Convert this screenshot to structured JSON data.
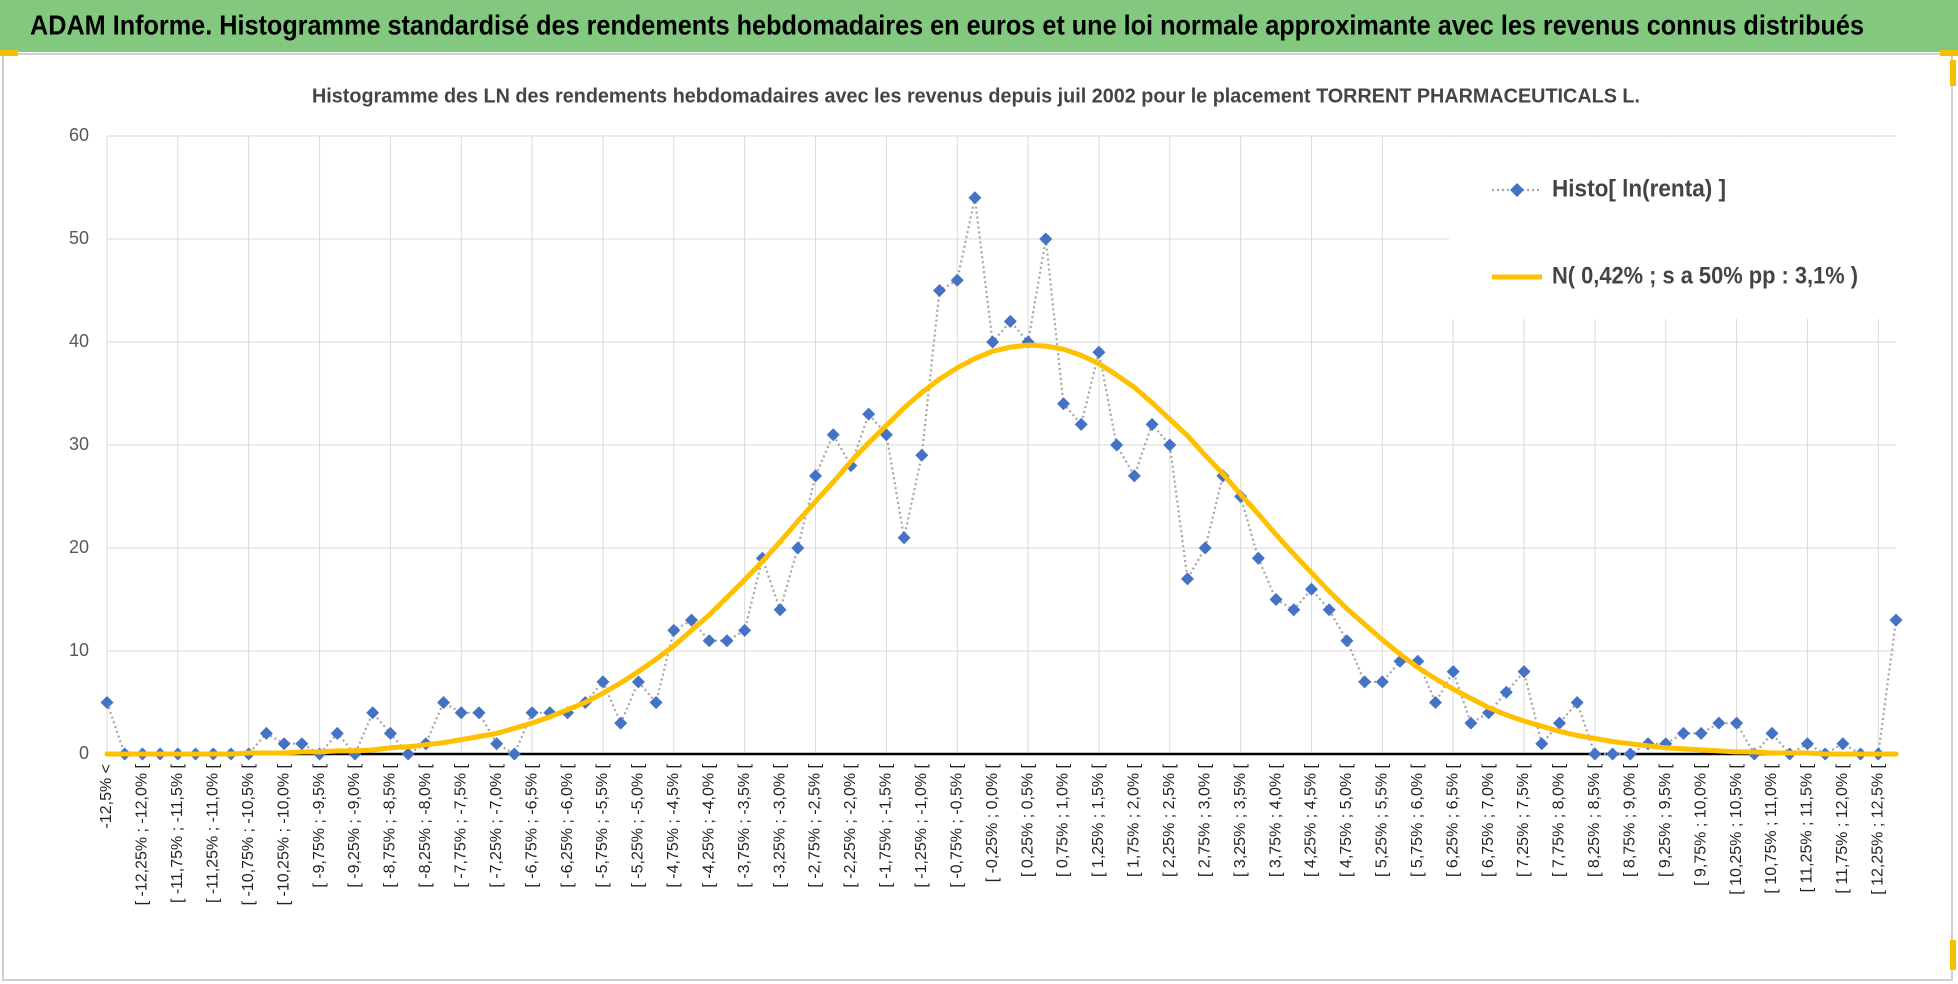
{
  "header": {
    "title": "ADAM Informe. Histogramme standardisé des rendements hebdomadaires en euros et une loi normale approximante avec les revenus connus distribués"
  },
  "chart_data": {
    "type": "line",
    "title": "Histogramme des LN des rendements hebdomadaires avec les revenus depuis juil 2002 pour le placement TORRENT PHARMACEUTICALS L.",
    "categories": [
      "-12,5% <",
      null,
      "[ -12,25% ; -12,0% [",
      null,
      "[ -11,75% ; -11,5% [",
      null,
      "[ -11,25% ; -11,0% [",
      null,
      "[ -10,75% ; -10,5% [",
      null,
      "[ -10,25% ; -10,0% [",
      null,
      "[ -9,75% ; -9,5% [",
      null,
      "[ -9,25% ; -9,0% [",
      null,
      "[ -8,75% ; -8,5% [",
      null,
      "[ -8,25% ; -8,0% [",
      null,
      "[ -7,75% ; -7,5% [",
      null,
      "[ -7,25% ; -7,0% [",
      null,
      "[ -6,75% ; -6,5% [",
      null,
      "[ -6,25% ; -6,0% [",
      null,
      "[ -5,75% ; -5,5% [",
      null,
      "[ -5,25% ; -5,0% [",
      null,
      "[ -4,75% ; -4,5% [",
      null,
      "[ -4,25% ; -4,0% [",
      null,
      "[ -3,75% ; -3,5% [",
      null,
      "[ -3,25% ; -3,0% [",
      null,
      "[ -2,75% ; -2,5% [",
      null,
      "[ -2,25% ; -2,0% [",
      null,
      "[ -1,75% ; -1,5% [",
      null,
      "[ -1,25% ; -1,0% [",
      null,
      "[ -0,75% ; -0,5% [",
      null,
      "[ -0,25% ; 0,0% [",
      null,
      "[ 0,25% ; 0,5% [",
      null,
      "[ 0,75% ; 1,0% [",
      null,
      "[ 1,25% ; 1,5% [",
      null,
      "[ 1,75% ; 2,0% [",
      null,
      "[ 2,25% ; 2,5% [",
      null,
      "[ 2,75% ; 3,0% [",
      null,
      "[ 3,25% ; 3,5% [",
      null,
      "[ 3,75% ; 4,0% [",
      null,
      "[ 4,25% ; 4,5% [",
      null,
      "[ 4,75% ; 5,0% [",
      null,
      "[ 5,25% ; 5,5% [",
      null,
      "[ 5,75% ; 6,0% [",
      null,
      "[ 6,25% ; 6,5% [",
      null,
      "[ 6,75% ; 7,0% [",
      null,
      "[ 7,25% ; 7,5% [",
      null,
      "[ 7,75% ; 8,0% [",
      null,
      "[ 8,25% ; 8,5% [",
      null,
      "[ 8,75% ; 9,0% [",
      null,
      "[ 9,25% ; 9,5% [",
      null,
      "[ 9,75% ; 10,0% [",
      null,
      "[ 10,25% ; 10,5% [",
      null,
      "[ 10,75% ; 11,0% [",
      null,
      "[ 11,25% ; 11,5% [",
      null,
      "[ 11,75% ; 12,0% [",
      null,
      "[ 12,25% ; 12,5% [",
      null
    ],
    "series": [
      {
        "name": "Histo[ ln(renta) ]",
        "color": "#4472c4",
        "line_color": "#a5a5a5",
        "values": [
          5,
          0,
          0,
          0,
          0,
          0,
          0,
          0,
          0,
          2,
          1,
          1,
          0,
          2,
          0,
          4,
          2,
          0,
          1,
          5,
          4,
          4,
          1,
          0,
          4,
          4,
          4,
          5,
          7,
          3,
          7,
          5,
          12,
          13,
          11,
          11,
          12,
          19,
          14,
          20,
          27,
          31,
          28,
          33,
          31,
          21,
          29,
          45,
          46,
          54,
          40,
          42,
          40,
          50,
          34,
          32,
          39,
          30,
          27,
          32,
          30,
          17,
          20,
          27,
          25,
          19,
          15,
          14,
          16,
          14,
          11,
          7,
          7,
          9,
          9,
          5,
          8,
          3,
          4,
          6,
          8,
          1,
          3,
          5,
          0,
          0,
          0,
          1,
          1,
          2,
          2,
          3,
          3,
          0,
          2,
          0,
          1,
          0,
          1,
          0,
          0,
          13
        ]
      },
      {
        "name": "N( 0,42% ; s a 50% pp : 3,1% )",
        "color": "#ffc000",
        "values": [
          0,
          0,
          0,
          0,
          0,
          0,
          0,
          0,
          0.1,
          0.1,
          0.1,
          0.2,
          0.2,
          0.3,
          0.3,
          0.4,
          0.6,
          0.7,
          0.9,
          1.1,
          1.4,
          1.7,
          2.0,
          2.5,
          3.0,
          3.6,
          4.3,
          5.0,
          5.9,
          6.9,
          8.0,
          9.2,
          10.5,
          12.0,
          13.5,
          15.2,
          16.9,
          18.7,
          20.6,
          22.6,
          24.5,
          26.4,
          28.4,
          30.2,
          31.9,
          33.6,
          35.1,
          36.4,
          37.5,
          38.4,
          39.1,
          39.5,
          39.7,
          39.6,
          39.3,
          38.7,
          37.9,
          36.8,
          35.6,
          34.1,
          32.5,
          30.9,
          29.0,
          27.2,
          25.2,
          23.3,
          21.3,
          19.4,
          17.6,
          15.8,
          14.1,
          12.6,
          11.1,
          9.7,
          8.4,
          7.3,
          6.3,
          5.4,
          4.5,
          3.8,
          3.2,
          2.7,
          2.2,
          1.8,
          1.5,
          1.2,
          1.0,
          0.8,
          0.6,
          0.5,
          0.4,
          0.3,
          0.2,
          0.2,
          0.1,
          0.1,
          0.1,
          0,
          0,
          0,
          0,
          0
        ]
      }
    ],
    "ylim": [
      0,
      60
    ],
    "yticks": [
      0,
      10,
      20,
      30,
      40,
      50,
      60
    ],
    "grid": true,
    "legend": "upper right"
  }
}
